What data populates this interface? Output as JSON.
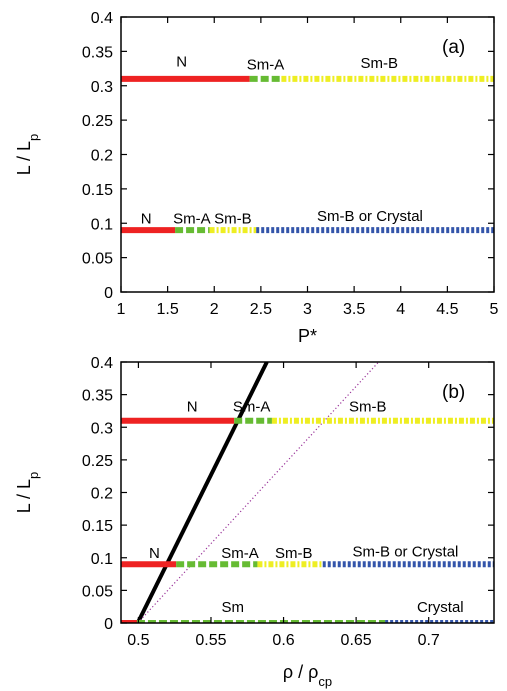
{
  "chart_data": [
    {
      "type": "line",
      "panel_label": "(a)",
      "xlabel": "P*",
      "ylabel": "L / L",
      "ylabel_sub": "p",
      "xlim": [
        1,
        5
      ],
      "ylim": [
        0,
        0.4
      ],
      "xticks": [
        1,
        1.5,
        2,
        2.5,
        3,
        3.5,
        4,
        4.5,
        5
      ],
      "xtick_labels": [
        "1",
        "1.5",
        "2",
        "2.5",
        "3",
        "3.5",
        "4",
        "4.5",
        "5"
      ],
      "yticks": [
        0,
        0.05,
        0.1,
        0.15,
        0.2,
        0.25,
        0.3,
        0.35,
        0.4
      ],
      "ytick_labels": [
        "0",
        "0.05",
        "0.1",
        "0.15",
        "0.2",
        "0.25",
        "0.3",
        "0.35",
        "0.4"
      ],
      "segments": [
        {
          "phase": "N",
          "y": 0.31,
          "x": [
            1.0,
            2.38
          ],
          "color": "#ee2222",
          "style": "solid"
        },
        {
          "phase": "Sm-A",
          "y": 0.31,
          "x": [
            2.38,
            2.72
          ],
          "color": "#66bb33",
          "style": "dashed"
        },
        {
          "phase": "Sm-B",
          "y": 0.31,
          "x": [
            2.72,
            5.0
          ],
          "color": "#eeee22",
          "style": "dashdot"
        },
        {
          "phase": "N",
          "y": 0.09,
          "x": [
            1.0,
            1.58
          ],
          "color": "#ee2222",
          "style": "solid"
        },
        {
          "phase": "Sm-A",
          "y": 0.09,
          "x": [
            1.58,
            1.95
          ],
          "color": "#66bb33",
          "style": "dashed"
        },
        {
          "phase": "Sm-B",
          "y": 0.09,
          "x": [
            1.95,
            2.45
          ],
          "color": "#eeee22",
          "style": "dashdot"
        },
        {
          "phase": "Sm-B or Crystal",
          "y": 0.09,
          "x": [
            2.45,
            5.0
          ],
          "color": "#3355aa",
          "style": "dotted"
        }
      ],
      "annotations": [
        {
          "text": "N",
          "x": 1.65,
          "y": 0.328
        },
        {
          "text": "Sm-A",
          "x": 2.55,
          "y": 0.324
        },
        {
          "text": "Sm-B",
          "x": 3.77,
          "y": 0.326
        },
        {
          "text": "N",
          "x": 1.27,
          "y": 0.1
        },
        {
          "text": "Sm-A",
          "x": 1.76,
          "y": 0.1
        },
        {
          "text": "Sm-B",
          "x": 2.2,
          "y": 0.1
        },
        {
          "text": "Sm-B or Crystal",
          "x": 3.67,
          "y": 0.103
        }
      ]
    },
    {
      "type": "line",
      "panel_label": "(b)",
      "xlabel": "ρ / ρ",
      "xlabel_sub": "cp",
      "ylabel": "L / L",
      "ylabel_sub": "p",
      "xlim": [
        0.488,
        0.745
      ],
      "ylim": [
        0,
        0.4
      ],
      "xticks": [
        0.5,
        0.55,
        0.6,
        0.65,
        0.7
      ],
      "xtick_labels": [
        "0.5",
        "0.55",
        "0.6",
        "0.65",
        "0.7"
      ],
      "yticks": [
        0,
        0.05,
        0.1,
        0.15,
        0.2,
        0.25,
        0.3,
        0.35,
        0.4
      ],
      "ytick_labels": [
        "0",
        "0.05",
        "0.1",
        "0.15",
        "0.2",
        "0.25",
        "0.3",
        "0.35",
        "0.4"
      ],
      "segments": [
        {
          "phase": "N",
          "y": 0.31,
          "x": [
            0.488,
            0.566
          ],
          "color": "#ee2222",
          "style": "solid"
        },
        {
          "phase": "Sm-A",
          "y": 0.31,
          "x": [
            0.566,
            0.592
          ],
          "color": "#66bb33",
          "style": "dashed"
        },
        {
          "phase": "Sm-B",
          "y": 0.31,
          "x": [
            0.592,
            0.745
          ],
          "color": "#eeee22",
          "style": "dashdot"
        },
        {
          "phase": "N",
          "y": 0.09,
          "x": [
            0.488,
            0.526
          ],
          "color": "#ee2222",
          "style": "solid"
        },
        {
          "phase": "Sm-A",
          "y": 0.09,
          "x": [
            0.526,
            0.582
          ],
          "color": "#66bb33",
          "style": "dashed"
        },
        {
          "phase": "Sm-B",
          "y": 0.09,
          "x": [
            0.582,
            0.627
          ],
          "color": "#eeee22",
          "style": "dashdot"
        },
        {
          "phase": "Sm-B or Crystal",
          "y": 0.09,
          "x": [
            0.627,
            0.745
          ],
          "color": "#3355aa",
          "style": "dotted"
        },
        {
          "phase": "",
          "y": 0.0,
          "x": [
            0.488,
            0.499
          ],
          "color": "#ee2222",
          "style": "solid"
        },
        {
          "phase": "Sm",
          "y": 0.0,
          "x": [
            0.499,
            0.67
          ],
          "color": "#66bb33",
          "style": "dashed"
        },
        {
          "phase": "Crystal",
          "y": 0.0,
          "x": [
            0.67,
            0.745
          ],
          "color": "#3355aa",
          "style": "dotted"
        }
      ],
      "lines": [
        {
          "x": [
            0.4995,
            0.5885
          ],
          "y": [
            0.0,
            0.4
          ],
          "color": "#000000",
          "style": "solid",
          "width": 4
        },
        {
          "x": [
            0.4995,
            0.6655
          ],
          "y": [
            0.0,
            0.4
          ],
          "color": "#993399",
          "style": "fine-dotted",
          "width": 1.2
        }
      ],
      "annotations": [
        {
          "text": "N",
          "x": 0.537,
          "y": 0.324
        },
        {
          "text": "Sm-A",
          "x": 0.578,
          "y": 0.324
        },
        {
          "text": "Sm-B",
          "x": 0.658,
          "y": 0.324
        },
        {
          "text": "N",
          "x": 0.511,
          "y": 0.1
        },
        {
          "text": "Sm-A",
          "x": 0.57,
          "y": 0.1
        },
        {
          "text": "Sm-B",
          "x": 0.607,
          "y": 0.1
        },
        {
          "text": "Sm-B or Crystal",
          "x": 0.684,
          "y": 0.102
        },
        {
          "text": "Sm",
          "x": 0.565,
          "y": 0.017
        },
        {
          "text": "Crystal",
          "x": 0.708,
          "y": 0.017
        }
      ]
    }
  ]
}
